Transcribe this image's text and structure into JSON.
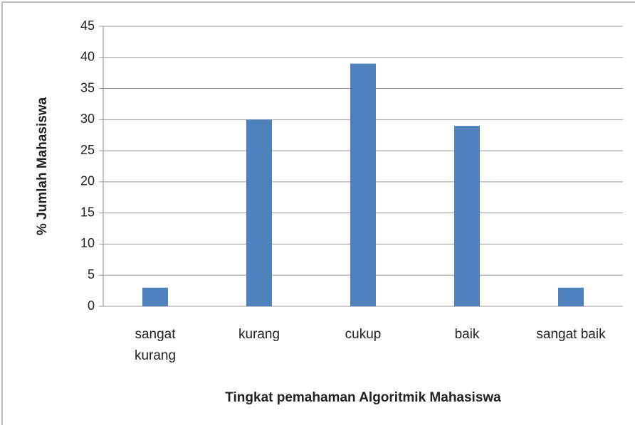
{
  "chart_data": {
    "type": "bar",
    "y_label": "% Jumlah Mahasiswa",
    "x_label": "Tingkat pemahaman Algoritmik Mahasiswa",
    "categories": [
      "sangat kurang",
      "kurang",
      "cukup",
      "baik",
      "sangat baik"
    ],
    "values": [
      3,
      30,
      39,
      29,
      3
    ],
    "color": "#4f81bd",
    "ylim": [
      0,
      45
    ],
    "yticks": [
      0,
      5,
      10,
      15,
      20,
      25,
      30,
      35,
      40,
      45
    ],
    "grid": true
  }
}
